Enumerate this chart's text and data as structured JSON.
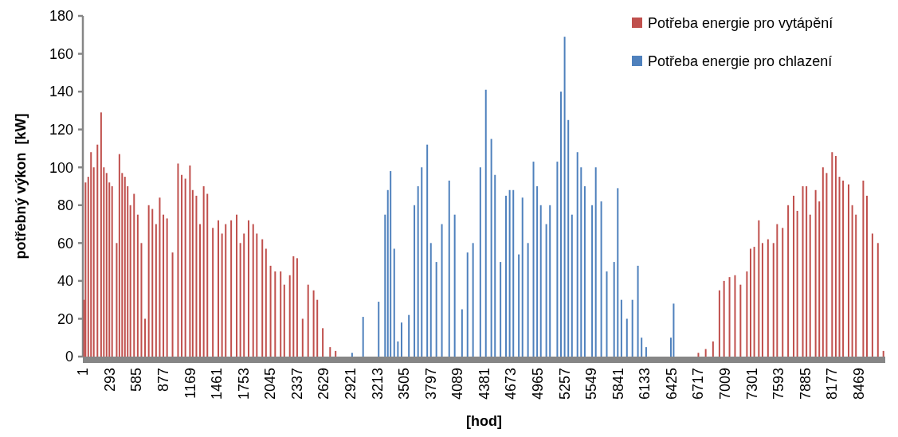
{
  "chart_data": {
    "type": "bar",
    "xlabel": "[hod]",
    "ylabel": "potřebný výkon  [kW]",
    "xlim": [
      1,
      8760
    ],
    "xticks": [
      1,
      293,
      585,
      877,
      1169,
      1461,
      1753,
      2045,
      2337,
      2629,
      2921,
      3213,
      3505,
      3797,
      4089,
      4381,
      4673,
      4965,
      5257,
      5549,
      5841,
      6133,
      6425,
      6717,
      7009,
      7301,
      7593,
      7885,
      8177,
      8469
    ],
    "ylim": [
      0,
      180
    ],
    "yticks": [
      0,
      20,
      40,
      60,
      80,
      100,
      120,
      140,
      160,
      180
    ],
    "grid": false,
    "legend": "top right",
    "series": [
      {
        "name": "Potřeba energie pro vytápění",
        "color": "#c0504d",
        "x": [
          15,
          30,
          60,
          90,
          120,
          160,
          200,
          230,
          260,
          290,
          320,
          370,
          400,
          430,
          460,
          490,
          520,
          560,
          600,
          640,
          680,
          720,
          760,
          800,
          840,
          880,
          920,
          980,
          1040,
          1080,
          1120,
          1170,
          1200,
          1240,
          1280,
          1320,
          1360,
          1420,
          1480,
          1520,
          1560,
          1620,
          1680,
          1720,
          1760,
          1810,
          1860,
          1900,
          1960,
          2000,
          2050,
          2100,
          2160,
          2200,
          2260,
          2300,
          2340,
          2400,
          2460,
          2520,
          2560,
          2620,
          2700,
          2760,
          6720,
          6800,
          6880,
          6950,
          7000,
          7060,
          7120,
          7180,
          7250,
          7290,
          7330,
          7380,
          7420,
          7480,
          7540,
          7580,
          7640,
          7700,
          7760,
          7800,
          7860,
          7900,
          7940,
          8000,
          8040,
          8080,
          8120,
          8180,
          8220,
          8260,
          8300,
          8360,
          8400,
          8440,
          8520,
          8560,
          8620,
          8680,
          8740
        ],
        "values": [
          30,
          92,
          95,
          108,
          100,
          112,
          129,
          100,
          97,
          92,
          90,
          60,
          107,
          97,
          95,
          90,
          80,
          86,
          75,
          60,
          20,
          80,
          78,
          70,
          84,
          75,
          73,
          55,
          102,
          96,
          94,
          101,
          88,
          85,
          70,
          90,
          86,
          68,
          72,
          65,
          70,
          72,
          75,
          60,
          65,
          72,
          70,
          65,
          62,
          57,
          48,
          45,
          45,
          38,
          43,
          53,
          52,
          20,
          38,
          35,
          30,
          15,
          5,
          3,
          2,
          4,
          8,
          35,
          40,
          42,
          43,
          38,
          45,
          57,
          58,
          72,
          60,
          62,
          60,
          70,
          68,
          80,
          85,
          77,
          90,
          90,
          75,
          88,
          82,
          100,
          97,
          108,
          106,
          95,
          93,
          91,
          80,
          75,
          93,
          85,
          65,
          60,
          3
        ]
      },
      {
        "name": "Potřeba energie pro chlazení",
        "color": "#4f81bd",
        "x": [
          2940,
          3060,
          3230,
          3300,
          3330,
          3360,
          3400,
          3440,
          3480,
          3560,
          3620,
          3660,
          3700,
          3760,
          3800,
          3860,
          3920,
          4000,
          4060,
          4140,
          4200,
          4260,
          4340,
          4400,
          4460,
          4500,
          4560,
          4620,
          4660,
          4700,
          4760,
          4800,
          4860,
          4920,
          4960,
          5000,
          5060,
          5100,
          5180,
          5220,
          5260,
          5300,
          5340,
          5400,
          5440,
          5480,
          5560,
          5600,
          5660,
          5720,
          5800,
          5840,
          5880,
          5940,
          6000,
          6060,
          6100,
          6150,
          6420,
          6450
        ],
        "values": [
          2,
          21,
          29,
          75,
          88,
          98,
          57,
          8,
          18,
          22,
          80,
          90,
          100,
          112,
          60,
          50,
          70,
          93,
          75,
          25,
          55,
          60,
          100,
          141,
          115,
          96,
          50,
          85,
          88,
          88,
          54,
          84,
          60,
          103,
          90,
          80,
          70,
          80,
          103,
          140,
          169,
          125,
          75,
          108,
          100,
          90,
          80,
          100,
          82,
          45,
          50,
          89,
          30,
          20,
          30,
          48,
          10,
          5,
          10,
          28
        ]
      }
    ]
  }
}
